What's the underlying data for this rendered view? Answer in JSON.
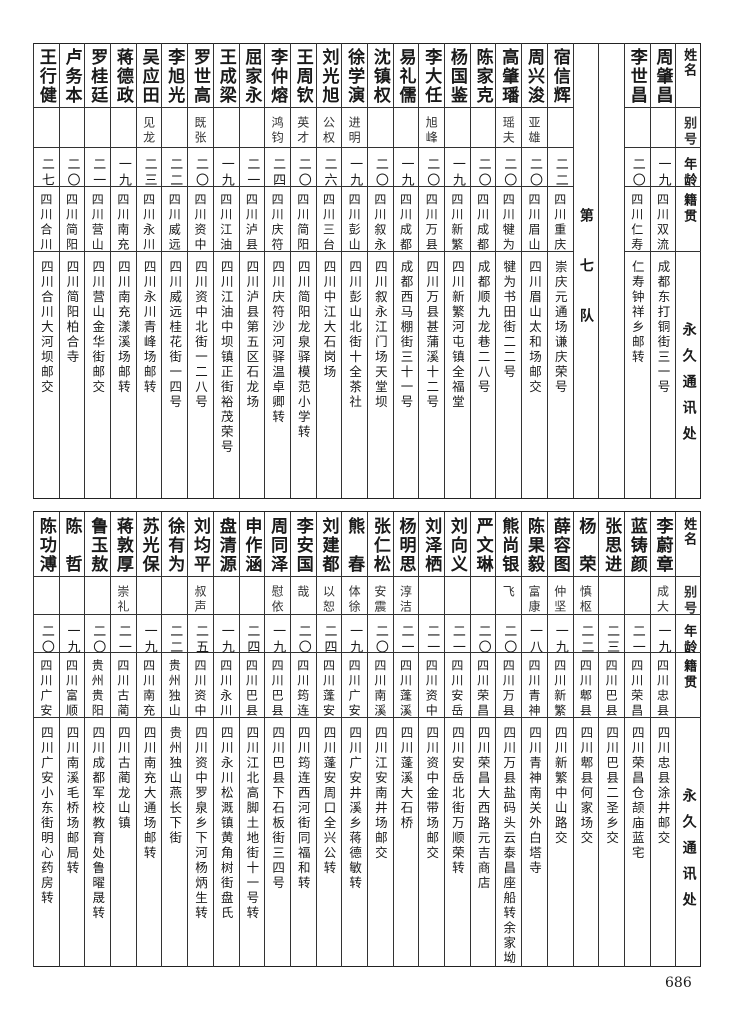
{
  "header": {
    "name": "姓名",
    "alias": "别号",
    "age": "年龄",
    "origin": "籍贯",
    "address": "永久通讯处"
  },
  "team_label": "第七队",
  "top_right_entries": [
    {
      "name": "周肇昌",
      "alias": "",
      "age": "一九",
      "origin": "四川双流",
      "address": "成都东打铜街三一号"
    },
    {
      "name": "李世昌",
      "alias": "",
      "age": "二〇",
      "origin": "四川仁寿",
      "address": "仁寿钟祥乡邮转"
    }
  ],
  "top_entries": [
    {
      "name": "宿信辉",
      "alias": "",
      "age": "二二",
      "origin": "四川重庆",
      "address": "崇庆元通场谦庆荣号"
    },
    {
      "name": "周兴浚",
      "alias": "亚雄",
      "age": "二〇",
      "origin": "四川眉山",
      "address": "四川眉山太和场邮交"
    },
    {
      "name": "高肇璠",
      "alias": "瑶夫",
      "age": "二〇",
      "origin": "四川犍为",
      "address": "犍为书田街二二号"
    },
    {
      "name": "陈家克",
      "alias": "",
      "age": "二〇",
      "origin": "四川成都",
      "address": "成都顺九龙巷二八号"
    },
    {
      "name": "杨国鉴",
      "alias": "",
      "age": "一九",
      "origin": "四川新繁",
      "address": "四川新繁河屯镇全福堂"
    },
    {
      "name": "李大任",
      "alias": "旭峰",
      "age": "二〇",
      "origin": "四川万县",
      "address": "四川万县甚蒲溪十二号"
    },
    {
      "name": "易礼儒",
      "alias": "",
      "age": "一九",
      "origin": "四川成都",
      "address": "成都西马棚街三十一号"
    },
    {
      "name": "沈镇权",
      "alias": "",
      "age": "二〇",
      "origin": "四川叙永",
      "address": "四川叙永江门场天堂坝"
    },
    {
      "name": "徐学演",
      "alias": "进明",
      "age": "一九",
      "origin": "四川彭山",
      "address": "四川彭山北街十全茶社"
    },
    {
      "name": "刘光旭",
      "alias": "公权",
      "age": "二六",
      "origin": "四川三台",
      "address": "四川中江大石岗场"
    },
    {
      "name": "王周钦",
      "alias": "英才",
      "age": "二〇",
      "origin": "四川简阳",
      "address": "四川简阳龙泉驿模范小学转"
    },
    {
      "name": "李仲熔",
      "alias": "鸿钧",
      "age": "二四",
      "origin": "四川庆符",
      "address": "四川庆符沙河驿温卓卿转"
    },
    {
      "name": "屈家永",
      "alias": "",
      "age": "二一",
      "origin": "四川泸县",
      "address": "四川泸县第五区石龙场"
    },
    {
      "name": "王成梁",
      "alias": "",
      "age": "一九",
      "origin": "四川江油",
      "address": "四川江油中坝镇正街裕茂荣号"
    },
    {
      "name": "罗世高",
      "alias": "既张",
      "age": "二〇",
      "origin": "四川资中",
      "address": "四川资中北街一二八号"
    },
    {
      "name": "李旭光",
      "alias": "",
      "age": "二二",
      "origin": "四川威远",
      "address": "四川威远桂花街一四号"
    },
    {
      "name": "吴应田",
      "alias": "见龙",
      "age": "二三",
      "origin": "四川永川",
      "address": "四川永川青峰场邮转"
    },
    {
      "name": "蒋德政",
      "alias": "",
      "age": "一九",
      "origin": "四川南充",
      "address": "四川南充漾溪场邮转"
    },
    {
      "name": "罗桂廷",
      "alias": "",
      "age": "二一",
      "origin": "四川营山",
      "address": "四川营山金华街邮交"
    },
    {
      "name": "卢务本",
      "alias": "",
      "age": "二〇",
      "origin": "四川简阳",
      "address": "四川简阳柏合寺"
    },
    {
      "name": "王行健",
      "alias": "",
      "age": "二七",
      "origin": "四川合川",
      "address": "四川合川大河坝邮交"
    }
  ],
  "bottom_entries": [
    {
      "name": "李蔚章",
      "alias": "成大",
      "age": "一九",
      "origin": "四川忠县",
      "address": "四川忠县涂井邮交"
    },
    {
      "name": "蓝铸颜",
      "alias": "",
      "age": "二一",
      "origin": "四川荣昌",
      "address": "四川荣昌仓颉庙蓝宅"
    },
    {
      "name": "张思进",
      "alias": "",
      "age": "二三",
      "origin": "四川巴县",
      "address": "四川巴县二圣乡交"
    },
    {
      "name": "杨　荣",
      "alias": "慎枢",
      "age": "二二",
      "origin": "四川郫县",
      "address": "四川郫县何家场交"
    },
    {
      "name": "薛容图",
      "alias": "仲坚",
      "age": "一九",
      "origin": "四川新繁",
      "address": "四川新繁中山路交"
    },
    {
      "name": "陈果毅",
      "alias": "富康",
      "age": "一八",
      "origin": "四川青神",
      "address": "四川青神南关外白塔寺"
    },
    {
      "name": "熊尚银",
      "alias": "飞",
      "age": "二〇",
      "origin": "四川万县",
      "address": "四川万县盐码头云泰昌座船转余家坳"
    },
    {
      "name": "严文琳",
      "alias": "",
      "age": "二〇",
      "origin": "四川荣昌",
      "address": "四川荣昌大西路元吉商店"
    },
    {
      "name": "刘向义",
      "alias": "",
      "age": "二一",
      "origin": "四川安岳",
      "address": "四川安岳北街万顺荣转"
    },
    {
      "name": "刘泽栖",
      "alias": "",
      "age": "二一",
      "origin": "四川资中",
      "address": "四川资中金带场邮交"
    },
    {
      "name": "杨明思",
      "alias": "淳洁",
      "age": "二一",
      "origin": "四川蓬溪",
      "address": "四川蓬溪大石桥"
    },
    {
      "name": "张仁松",
      "alias": "安震",
      "age": "二〇",
      "origin": "四川南溪",
      "address": "四川江安南井场邮交"
    },
    {
      "name": "熊　春",
      "alias": "体徐",
      "age": "一九",
      "origin": "四川广安",
      "address": "四川广安井溪乡蒋德敏转"
    },
    {
      "name": "刘建都",
      "alias": "以恕",
      "age": "二四",
      "origin": "四川蓬安",
      "address": "四川蓬安周口全兴公转"
    },
    {
      "name": "李安国",
      "alias": "哉",
      "age": "二〇",
      "origin": "四川筠连",
      "address": "四川筠连西河街同福和转"
    },
    {
      "name": "周同泽",
      "alias": "慰依",
      "age": "一九",
      "origin": "四川巴县",
      "address": "四川巴县下石板街三四号"
    },
    {
      "name": "申作涵",
      "alias": "",
      "age": "二四",
      "origin": "四川巴县",
      "address": "四川江北高脚土地街十一号转"
    },
    {
      "name": "盘清源",
      "alias": "",
      "age": "一九",
      "origin": "四川永川",
      "address": "四川永川松溉镇黄角树街盘氏"
    },
    {
      "name": "刘均平",
      "alias": "叔声",
      "age": "二五",
      "origin": "四川资中",
      "address": "四川资中罗泉乡下河杨炳生转"
    },
    {
      "name": "徐有为",
      "alias": "",
      "age": "二二",
      "origin": "贵州独山",
      "address": "贵州独山燕长下街"
    },
    {
      "name": "苏光保",
      "alias": "",
      "age": "一九",
      "origin": "四川南充",
      "address": "四川南充大通场邮转"
    },
    {
      "name": "蒋敦厚",
      "alias": "崇礼",
      "age": "二一",
      "origin": "四川古蔺",
      "address": "四川古蔺龙山镇"
    },
    {
      "name": "鲁玉敖",
      "alias": "",
      "age": "二〇",
      "origin": "贵州贵阳",
      "address": "四川成都军校教育处鲁曜晟转"
    },
    {
      "name": "陈　哲",
      "alias": "",
      "age": "一九",
      "origin": "四川富顺",
      "address": "四川南溪毛桥场邮局转"
    },
    {
      "name": "陈功溥",
      "alias": "",
      "age": "二〇",
      "origin": "四川广安",
      "address": "四川广安小东街明心药房转"
    }
  ],
  "page_number": "686"
}
